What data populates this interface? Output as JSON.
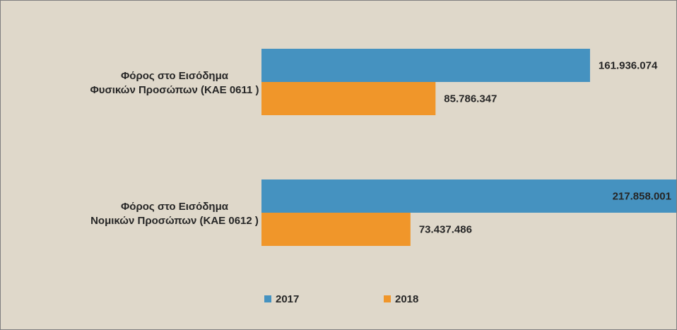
{
  "chart_data": {
    "type": "bar",
    "orientation": "horizontal",
    "title": "",
    "xlabel": "",
    "ylabel": "",
    "grid": false,
    "legend_position": "bottom",
    "xlim": [
      0,
      225000000
    ],
    "categories": [
      [
        "Φόρος στο Εισόδημα",
        "Φυσικών Προσώπων (ΚΑΕ 0611 )"
      ],
      [
        "Φόρος στο Εισόδημα",
        "Νομικών Προσώπων (ΚΑΕ 0612 )"
      ]
    ],
    "series": [
      {
        "name": "2017",
        "color": "#4592c0",
        "values": [
          161936074,
          217858001
        ],
        "labels": [
          "161.936.074",
          "217.858.001"
        ]
      },
      {
        "name": "2018",
        "color": "#f0962a",
        "values": [
          85786347,
          73437486
        ],
        "labels": [
          "85.786.347",
          "73.437.486"
        ]
      }
    ]
  },
  "colors": {
    "background": "#dfd8ca",
    "border": "#7f7f7f",
    "text": "#262626"
  }
}
